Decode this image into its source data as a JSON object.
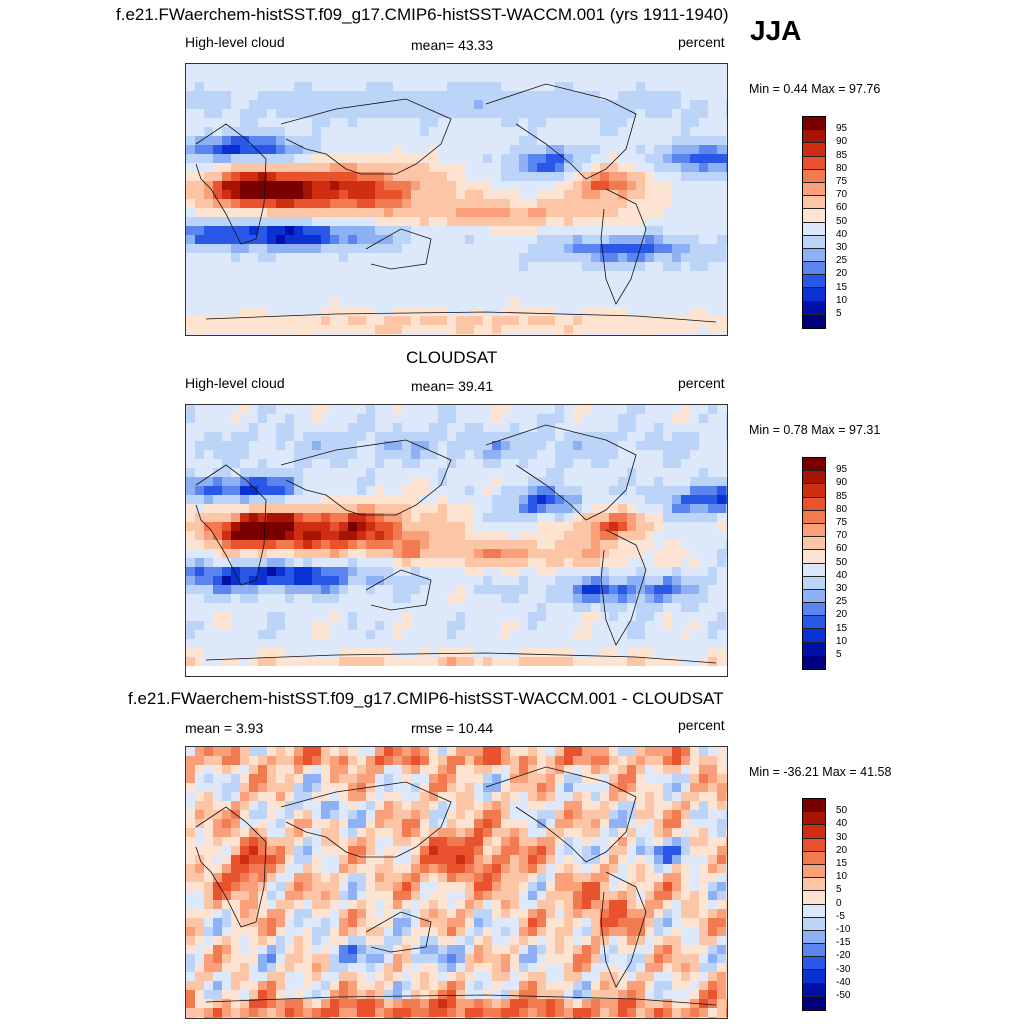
{
  "season": "JJA",
  "colors": {
    "scale": [
      "#00007f",
      "#0010a8",
      "#0a32d2",
      "#2a58e6",
      "#5a84ee",
      "#8eb0f4",
      "#bcd4f8",
      "#dde9fb",
      "#fde4d2",
      "#fcc6a6",
      "#f9a07a",
      "#f27a50",
      "#e8522c",
      "#cf2e12",
      "#a81404",
      "#7a0000"
    ]
  },
  "panels": [
    {
      "title": "f.e21.FWaerchem-histSST.f09_g17.CMIP6-histSST-WACCM.001 (yrs 1911-1940)",
      "left_label": "High-level cloud",
      "center_label": "mean=  43.33",
      "right_label": "percent",
      "minmax": "Min =   0.44 Max =  97.76",
      "colorbar_ticks": [
        "95",
        "90",
        "85",
        "80",
        "75",
        "70",
        "60",
        "50",
        "40",
        "30",
        "25",
        "20",
        "15",
        "10",
        "5"
      ],
      "field": "model"
    },
    {
      "title": "CLOUDSAT",
      "left_label": "High-level cloud",
      "center_label": "mean=  39.41",
      "right_label": "percent",
      "minmax": "Min =   0.78 Max =  97.31",
      "colorbar_ticks": [
        "95",
        "90",
        "85",
        "80",
        "75",
        "70",
        "60",
        "50",
        "40",
        "30",
        "25",
        "20",
        "15",
        "10",
        "5"
      ],
      "field": "obs"
    },
    {
      "title": "f.e21.FWaerchem-histSST.f09_g17.CMIP6-histSST-WACCM.001 - CLOUDSAT",
      "left_label": "mean =   3.93",
      "center_label": "rmse =  10.44",
      "right_label": "percent",
      "minmax": "Min = -36.21 Max =  41.58",
      "colorbar_ticks": [
        "50",
        "40",
        "30",
        "20",
        "15",
        "10",
        "5",
        "0",
        "-5",
        "-10",
        "-15",
        "-20",
        "-30",
        "-40",
        "-50"
      ],
      "field": "diff"
    }
  ]
}
